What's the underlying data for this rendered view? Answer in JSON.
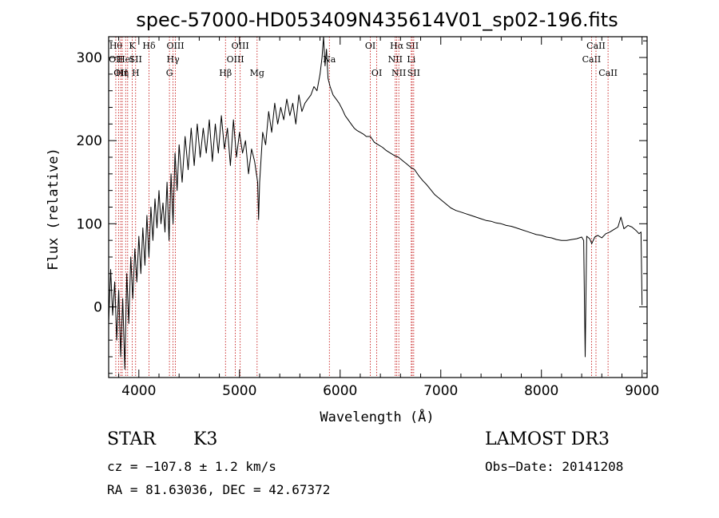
{
  "chart_data": {
    "type": "line",
    "title": "spec-57000-HD053409N435614V01_sp02-196.fits",
    "xlabel": "Wavelength (Å)",
    "ylabel": "Flux (relative)",
    "xlim": [
      3700,
      9050
    ],
    "ylim": [
      -85,
      325
    ],
    "xticks": [
      4000,
      5000,
      6000,
      7000,
      8000,
      9000
    ],
    "yticks": [
      0,
      100,
      200,
      300
    ],
    "series": [
      {
        "name": "flux",
        "points": [
          [
            3700,
            -20
          ],
          [
            3720,
            45
          ],
          [
            3740,
            -10
          ],
          [
            3760,
            30
          ],
          [
            3780,
            -40
          ],
          [
            3800,
            20
          ],
          [
            3820,
            -60
          ],
          [
            3840,
            10
          ],
          [
            3860,
            -75
          ],
          [
            3880,
            40
          ],
          [
            3900,
            -20
          ],
          [
            3920,
            60
          ],
          [
            3940,
            10
          ],
          [
            3960,
            70
          ],
          [
            3980,
            30
          ],
          [
            4000,
            85
          ],
          [
            4020,
            40
          ],
          [
            4040,
            95
          ],
          [
            4060,
            50
          ],
          [
            4080,
            110
          ],
          [
            4100,
            60
          ],
          [
            4120,
            120
          ],
          [
            4140,
            80
          ],
          [
            4160,
            130
          ],
          [
            4180,
            95
          ],
          [
            4200,
            140
          ],
          [
            4220,
            100
          ],
          [
            4240,
            125
          ],
          [
            4260,
            90
          ],
          [
            4280,
            150
          ],
          [
            4300,
            80
          ],
          [
            4320,
            160
          ],
          [
            4340,
            100
          ],
          [
            4360,
            185
          ],
          [
            4380,
            140
          ],
          [
            4400,
            195
          ],
          [
            4430,
            150
          ],
          [
            4460,
            205
          ],
          [
            4490,
            165
          ],
          [
            4520,
            215
          ],
          [
            4550,
            170
          ],
          [
            4580,
            220
          ],
          [
            4610,
            180
          ],
          [
            4640,
            215
          ],
          [
            4670,
            185
          ],
          [
            4700,
            225
          ],
          [
            4730,
            175
          ],
          [
            4760,
            220
          ],
          [
            4790,
            185
          ],
          [
            4820,
            230
          ],
          [
            4850,
            190
          ],
          [
            4880,
            215
          ],
          [
            4910,
            170
          ],
          [
            4940,
            225
          ],
          [
            4970,
            180
          ],
          [
            5000,
            210
          ],
          [
            5030,
            185
          ],
          [
            5060,
            200
          ],
          [
            5090,
            160
          ],
          [
            5120,
            190
          ],
          [
            5150,
            175
          ],
          [
            5180,
            150
          ],
          [
            5190,
            105
          ],
          [
            5200,
            150
          ],
          [
            5230,
            210
          ],
          [
            5260,
            195
          ],
          [
            5290,
            235
          ],
          [
            5320,
            210
          ],
          [
            5350,
            245
          ],
          [
            5380,
            220
          ],
          [
            5410,
            240
          ],
          [
            5440,
            225
          ],
          [
            5470,
            250
          ],
          [
            5500,
            230
          ],
          [
            5530,
            245
          ],
          [
            5560,
            220
          ],
          [
            5590,
            255
          ],
          [
            5620,
            235
          ],
          [
            5650,
            245
          ],
          [
            5680,
            250
          ],
          [
            5710,
            255
          ],
          [
            5740,
            265
          ],
          [
            5770,
            260
          ],
          [
            5800,
            280
          ],
          [
            5820,
            300
          ],
          [
            5835,
            325
          ],
          [
            5850,
            290
          ],
          [
            5865,
            310
          ],
          [
            5880,
            275
          ],
          [
            5900,
            265
          ],
          [
            5930,
            255
          ],
          [
            5960,
            250
          ],
          [
            5990,
            245
          ],
          [
            6020,
            238
          ],
          [
            6050,
            230
          ],
          [
            6080,
            225
          ],
          [
            6110,
            220
          ],
          [
            6140,
            215
          ],
          [
            6170,
            212
          ],
          [
            6200,
            210
          ],
          [
            6230,
            208
          ],
          [
            6260,
            205
          ],
          [
            6300,
            205
          ],
          [
            6340,
            198
          ],
          [
            6380,
            195
          ],
          [
            6420,
            192
          ],
          [
            6460,
            188
          ],
          [
            6500,
            185
          ],
          [
            6540,
            182
          ],
          [
            6580,
            180
          ],
          [
            6620,
            176
          ],
          [
            6660,
            172
          ],
          [
            6700,
            168
          ],
          [
            6740,
            165
          ],
          [
            6780,
            158
          ],
          [
            6820,
            152
          ],
          [
            6860,
            147
          ],
          [
            6900,
            141
          ],
          [
            6940,
            135
          ],
          [
            6980,
            131
          ],
          [
            7020,
            127
          ],
          [
            7060,
            123
          ],
          [
            7100,
            119
          ],
          [
            7150,
            116
          ],
          [
            7200,
            114
          ],
          [
            7250,
            112
          ],
          [
            7300,
            110
          ],
          [
            7350,
            108
          ],
          [
            7400,
            106
          ],
          [
            7450,
            104
          ],
          [
            7500,
            103
          ],
          [
            7550,
            101
          ],
          [
            7600,
            100
          ],
          [
            7650,
            98
          ],
          [
            7700,
            97
          ],
          [
            7750,
            95
          ],
          [
            7800,
            93
          ],
          [
            7850,
            91
          ],
          [
            7900,
            89
          ],
          [
            7950,
            87
          ],
          [
            8000,
            86
          ],
          [
            8050,
            84
          ],
          [
            8100,
            83
          ],
          [
            8150,
            81
          ],
          [
            8200,
            80
          ],
          [
            8250,
            80
          ],
          [
            8300,
            81
          ],
          [
            8350,
            82
          ],
          [
            8400,
            84
          ],
          [
            8420,
            80
          ],
          [
            8435,
            -60
          ],
          [
            8450,
            85
          ],
          [
            8480,
            82
          ],
          [
            8500,
            76
          ],
          [
            8530,
            84
          ],
          [
            8560,
            86
          ],
          [
            8600,
            83
          ],
          [
            8640,
            88
          ],
          [
            8680,
            90
          ],
          [
            8720,
            93
          ],
          [
            8760,
            96
          ],
          [
            8790,
            108
          ],
          [
            8820,
            94
          ],
          [
            8860,
            98
          ],
          [
            8900,
            96
          ],
          [
            8940,
            92
          ],
          [
            8970,
            88
          ],
          [
            8990,
            90
          ],
          [
            9000,
            2
          ]
        ]
      }
    ],
    "lines": [
      {
        "wl": 3771,
        "labels": [
          {
            "text": "Hθ",
            "row": 0
          },
          {
            "text": "OII",
            "row": 1
          }
        ]
      },
      {
        "wl": 3798,
        "labels": []
      },
      {
        "wl": 3820,
        "labels": [
          {
            "text": "OII",
            "row": 2
          }
        ]
      },
      {
        "wl": 3835,
        "labels": [
          {
            "text": "Hη",
            "row": 2
          }
        ]
      },
      {
        "wl": 3869,
        "labels": [
          {
            "text": "HeI",
            "row": 1
          }
        ]
      },
      {
        "wl": 3889,
        "labels": []
      },
      {
        "wl": 3934,
        "labels": [
          {
            "text": "K",
            "row": 0
          }
        ]
      },
      {
        "wl": 3968,
        "labels": [
          {
            "text": "SII",
            "row": 1
          },
          {
            "text": "H",
            "row": 2
          }
        ]
      },
      {
        "wl": 4101,
        "labels": [
          {
            "text": "Hδ",
            "row": 0
          }
        ]
      },
      {
        "wl": 4304,
        "labels": [
          {
            "text": "G",
            "row": 2
          }
        ]
      },
      {
        "wl": 4340,
        "labels": [
          {
            "text": "Hγ",
            "row": 1
          }
        ]
      },
      {
        "wl": 4363,
        "labels": [
          {
            "text": "OIII",
            "row": 0
          }
        ]
      },
      {
        "wl": 4861,
        "labels": [
          {
            "text": "Hβ",
            "row": 2
          }
        ]
      },
      {
        "wl": 4959,
        "labels": [
          {
            "text": "OIII",
            "row": 1
          }
        ]
      },
      {
        "wl": 5007,
        "labels": [
          {
            "text": "OIII",
            "row": 0
          }
        ]
      },
      {
        "wl": 5175,
        "labels": [
          {
            "text": "Mg",
            "row": 2
          }
        ]
      },
      {
        "wl": 5893,
        "labels": [
          {
            "text": "Na",
            "row": 1
          }
        ]
      },
      {
        "wl": 6300,
        "labels": [
          {
            "text": "OI",
            "row": 0
          }
        ]
      },
      {
        "wl": 6364,
        "labels": [
          {
            "text": "OI",
            "row": 2
          }
        ]
      },
      {
        "wl": 6548,
        "labels": [
          {
            "text": "NII",
            "row": 1
          }
        ]
      },
      {
        "wl": 6563,
        "labels": [
          {
            "text": "Hα",
            "row": 0
          }
        ]
      },
      {
        "wl": 6583,
        "labels": [
          {
            "text": "NII",
            "row": 2
          }
        ]
      },
      {
        "wl": 6707,
        "labels": [
          {
            "text": "Li",
            "row": 1
          }
        ]
      },
      {
        "wl": 6716,
        "labels": [
          {
            "text": "SII",
            "row": 0
          }
        ]
      },
      {
        "wl": 6731,
        "labels": [
          {
            "text": "SII",
            "row": 2
          }
        ]
      },
      {
        "wl": 8498,
        "labels": [
          {
            "text": "CaII",
            "row": 1
          }
        ]
      },
      {
        "wl": 8542,
        "labels": [
          {
            "text": "CaII",
            "row": 0
          }
        ]
      },
      {
        "wl": 8662,
        "labels": [
          {
            "text": "CaII",
            "row": 2
          }
        ]
      }
    ]
  },
  "info": {
    "class": "STAR",
    "subclass": "K3",
    "survey": "LAMOST DR3",
    "cz": "cz = −107.8 ± 1.2 km/s",
    "obs_date": "Obs−Date: 20141208",
    "coords": "RA =  81.63036, DEC =  42.67372"
  },
  "colors": {
    "spectrum": "#000000",
    "line_markers": "#c00000",
    "axes": "#000000"
  }
}
